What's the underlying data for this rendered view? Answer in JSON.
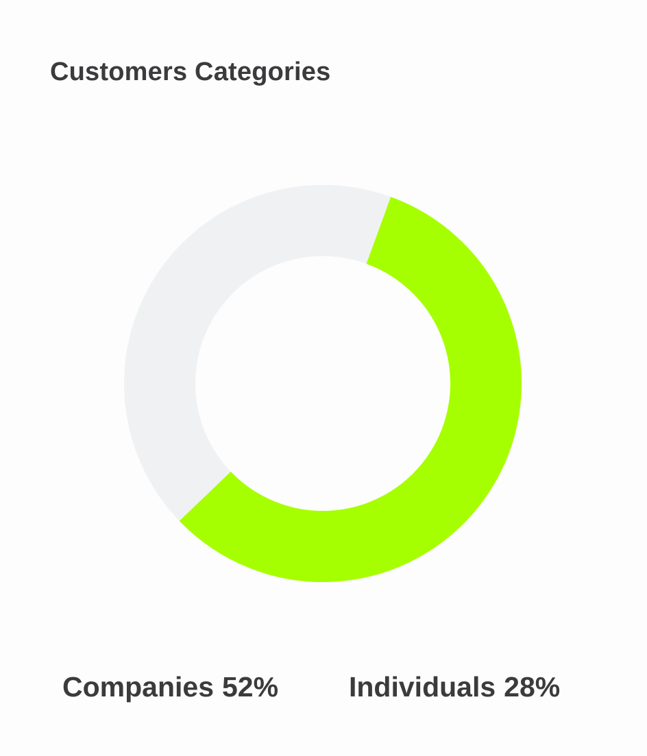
{
  "chart_data": {
    "type": "pie",
    "variant": "donut",
    "title": "Customers Categories",
    "categories": [
      "Companies",
      "Individuals"
    ],
    "values": [
      52,
      28
    ],
    "value_labels": [
      "52%",
      "28%"
    ],
    "colors": {
      "Companies": "#a6ff00",
      "remainder": "#f0f1f3"
    },
    "legend_placement": "bottom"
  }
}
